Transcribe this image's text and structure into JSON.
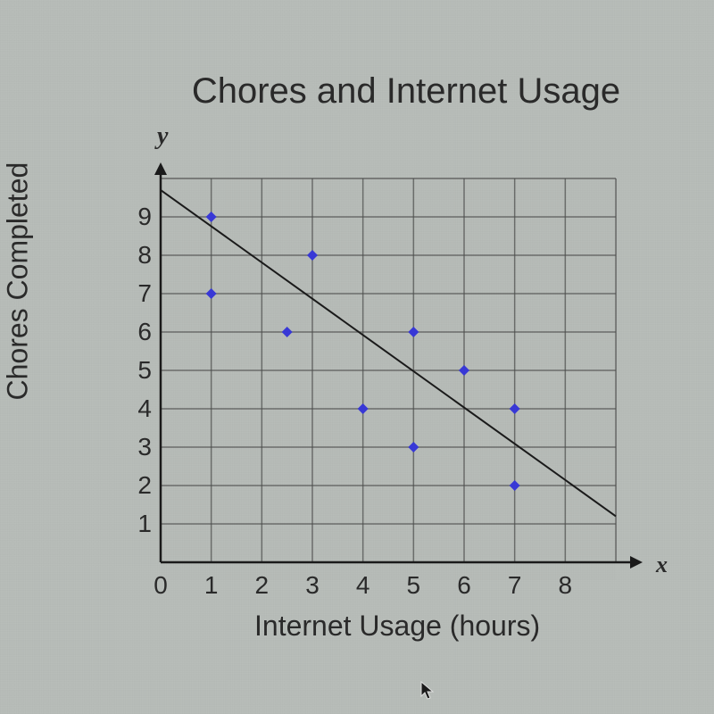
{
  "chart": {
    "type": "scatter",
    "title": "Chores and Internet Usage",
    "y_axis_var": "y",
    "x_axis_var": "x",
    "x_axis_title": "Internet Usage (hours)",
    "y_axis_title": "Chores Completed",
    "x_ticks": [
      0,
      1,
      2,
      3,
      4,
      5,
      6,
      7,
      8
    ],
    "y_ticks": [
      1,
      2,
      3,
      4,
      5,
      6,
      7,
      8,
      9
    ],
    "xlim": [
      0,
      9
    ],
    "ylim": [
      0,
      10
    ],
    "points": [
      {
        "x": 1,
        "y": 9
      },
      {
        "x": 1,
        "y": 7
      },
      {
        "x": 2.5,
        "y": 6
      },
      {
        "x": 3,
        "y": 8
      },
      {
        "x": 4,
        "y": 4
      },
      {
        "x": 5,
        "y": 6
      },
      {
        "x": 5,
        "y": 3
      },
      {
        "x": 6,
        "y": 5
      },
      {
        "x": 7,
        "y": 4
      },
      {
        "x": 7,
        "y": 2
      }
    ],
    "trend_line": {
      "x1": 0,
      "y1": 9.7,
      "x2": 9,
      "y2": 1.2
    },
    "colors": {
      "background": "#b8bdb9",
      "grid": "#3a3a3a",
      "axis": "#1a1a1a",
      "point_fill": "#3838d8",
      "trend_line": "#1a1a1a",
      "text": "#2a2a2a"
    },
    "style": {
      "title_fontsize": 40,
      "label_fontsize": 32,
      "tick_fontsize": 28,
      "point_radius": 6,
      "grid_linewidth": 1.5,
      "axis_linewidth": 2.5,
      "trend_linewidth": 2
    }
  }
}
